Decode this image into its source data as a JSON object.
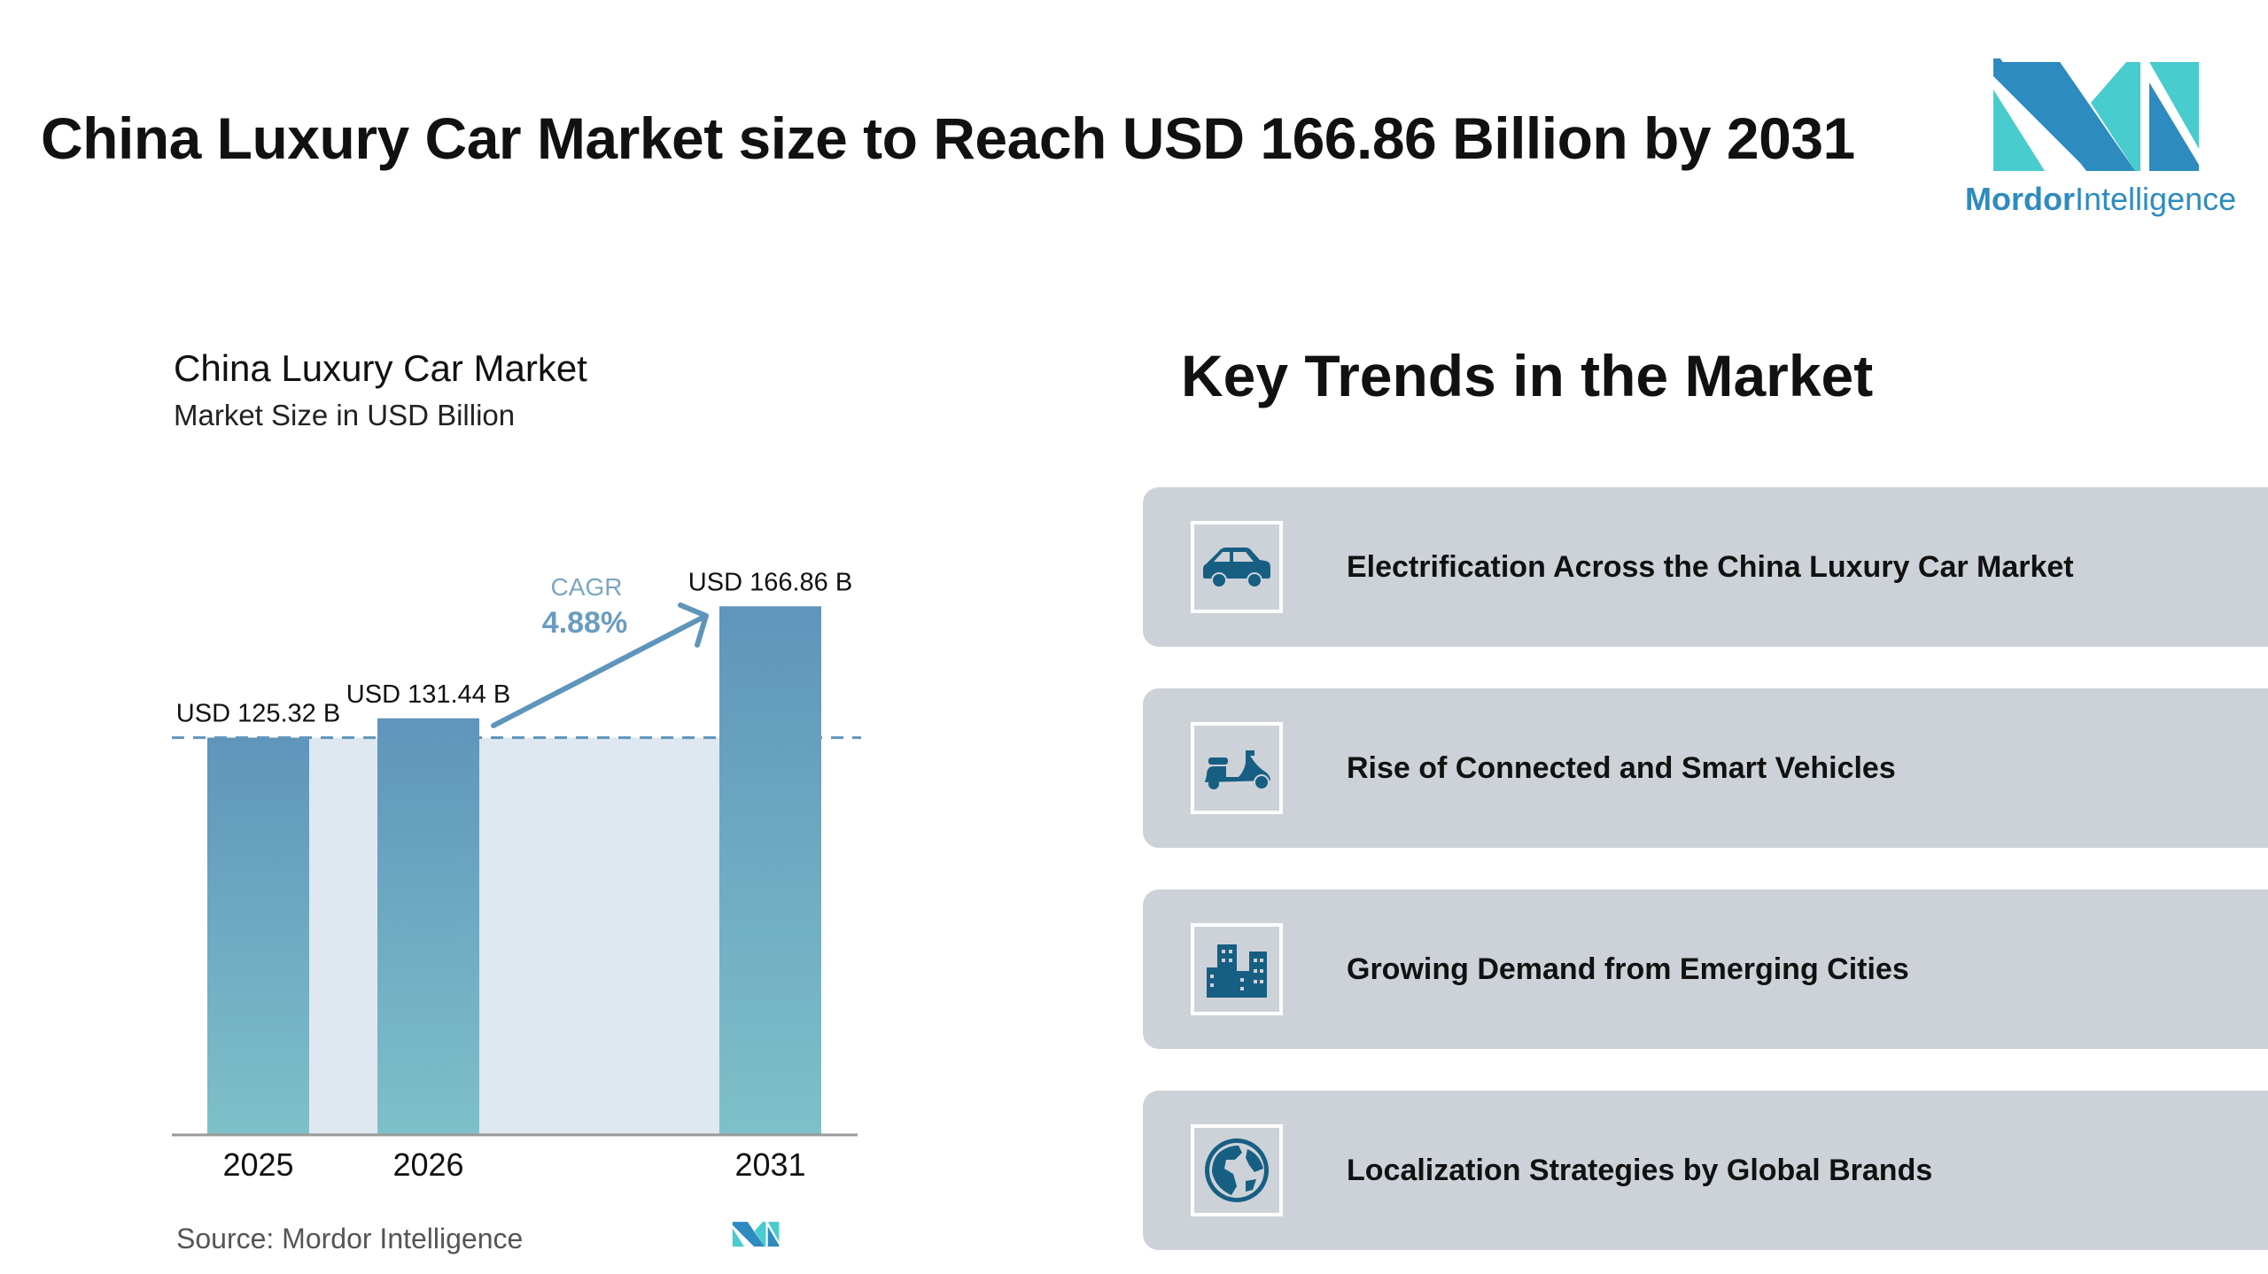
{
  "header": {
    "title": "China Luxury Car Market size to Reach USD 166.86 Billion by 2031"
  },
  "logo": {
    "brand_bold": "Mordor",
    "brand_light": "Intelligence",
    "colors": {
      "dark": "#2e8bbf",
      "light": "#48cccd"
    }
  },
  "chart_data": {
    "type": "bar",
    "title": "China Luxury Car Market",
    "subtitle": "Market Size in USD Billion",
    "categories": [
      "2025",
      "2026",
      "2031"
    ],
    "values": [
      125.32,
      131.44,
      166.86
    ],
    "data_labels": [
      "USD 125.32 B",
      "USD 131.44 B",
      "USD 166.86 B"
    ],
    "unit": "USD Billion",
    "ylim": [
      0,
      180
    ],
    "grid": false,
    "annotation": {
      "label": "CAGR",
      "value": "4.88%"
    },
    "bar_color_top": "#5f95bb",
    "bar_color_bottom": "#7ec0c8",
    "source": "Source:  Mordor Intelligence"
  },
  "trends": {
    "title": "Key Trends in the Market",
    "items": [
      {
        "label": "Electrification Across the China Luxury Car Market",
        "icon": "car-icon"
      },
      {
        "label": "Rise of Connected and Smart Vehicles",
        "icon": "scooter-icon"
      },
      {
        "label": "Growing Demand from Emerging Cities",
        "icon": "buildings-icon"
      },
      {
        "label": "Localization Strategies by Global Brands",
        "icon": "globe-icon"
      }
    ],
    "icon_color": "#175f82",
    "card_color": "#cdd2d9"
  }
}
